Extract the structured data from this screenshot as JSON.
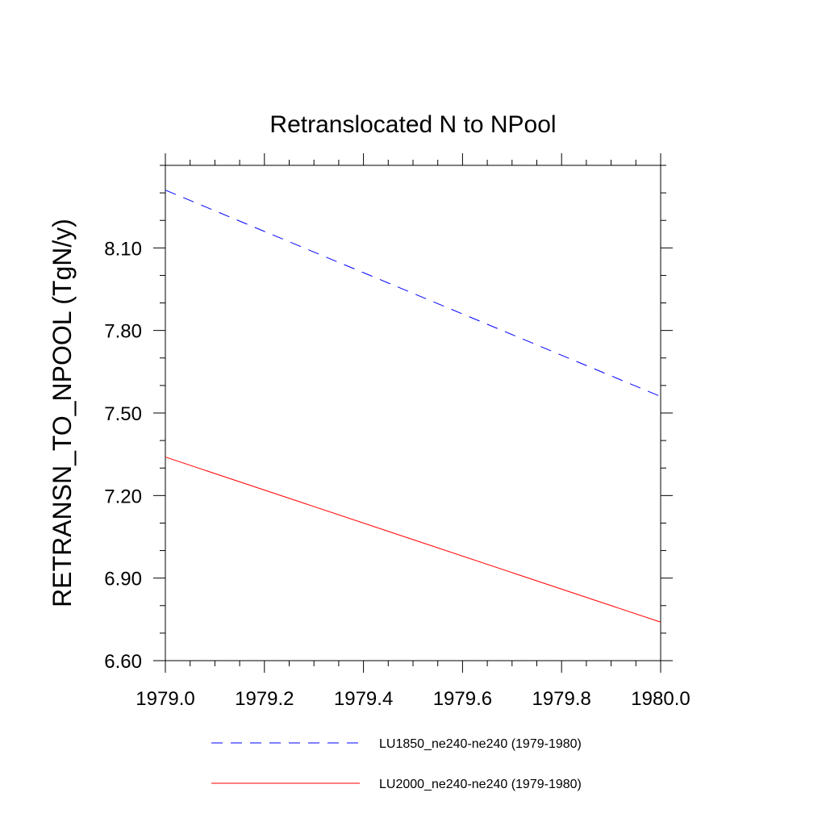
{
  "chart_data": {
    "type": "line",
    "title": "Retranslocated N to NPool",
    "xlabel": "",
    "ylabel": "RETRANSN_TO_NPOOL  (TgN/y)",
    "xlim": [
      1979.0,
      1980.0
    ],
    "ylim": [
      6.6,
      8.4
    ],
    "xticks": [
      "1979.0",
      "1979.2",
      "1979.4",
      "1979.6",
      "1979.8",
      "1980.0"
    ],
    "yticks": [
      "6.60",
      "6.90",
      "7.20",
      "7.50",
      "7.80",
      "8.10"
    ],
    "grid": false,
    "legend_position": "bottom",
    "series": [
      {
        "name": "LU1850_ne240-ne240 (1979-1980)",
        "color": "#0000ff",
        "dash": "dashed",
        "x": [
          1979.0,
          1980.0
        ],
        "y": [
          8.31,
          7.56
        ]
      },
      {
        "name": "LU2000_ne240-ne240 (1979-1980)",
        "color": "#ff0000",
        "dash": "solid",
        "x": [
          1979.0,
          1980.0
        ],
        "y": [
          7.34,
          6.74
        ]
      }
    ]
  }
}
